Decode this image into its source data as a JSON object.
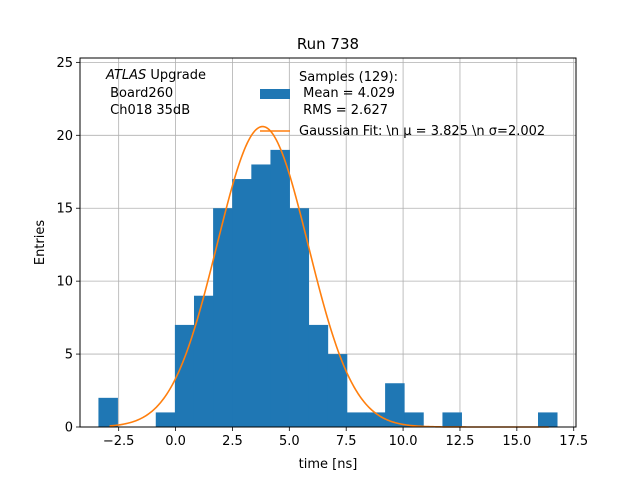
{
  "chart_data": {
    "type": "bar",
    "title": "Run 738",
    "xlabel": "time [ns]",
    "ylabel": "Entries",
    "xlim": [
      -4.2,
      17.6
    ],
    "ylim": [
      0,
      25.3
    ],
    "x_ticks": [
      -2.5,
      0.0,
      2.5,
      5.0,
      7.5,
      10.0,
      12.5,
      15.0,
      17.5
    ],
    "x_tick_labels": [
      "−2.5",
      "0.0",
      "2.5",
      "5.0",
      "7.5",
      "10.0",
      "12.5",
      "15.0",
      "17.5"
    ],
    "y_ticks": [
      0,
      5,
      10,
      15,
      20,
      25
    ],
    "y_tick_labels": [
      "0",
      "5",
      "10",
      "15",
      "20",
      "25"
    ],
    "grid": true,
    "bar_color": "#1f77b4",
    "fit_color": "#ff7f0e",
    "bins": [
      {
        "x0": -3.39,
        "x1": -2.55,
        "count": 2
      },
      {
        "x0": -0.87,
        "x1": -0.03,
        "count": 1
      },
      {
        "x0": -0.03,
        "x1": 0.81,
        "count": 7
      },
      {
        "x0": 0.81,
        "x1": 1.65,
        "count": 9
      },
      {
        "x0": 1.65,
        "x1": 2.49,
        "count": 15
      },
      {
        "x0": 2.49,
        "x1": 3.33,
        "count": 17
      },
      {
        "x0": 3.33,
        "x1": 4.17,
        "count": 18
      },
      {
        "x0": 4.17,
        "x1": 5.01,
        "count": 19
      },
      {
        "x0": 5.01,
        "x1": 5.85,
        "count": 15
      },
      {
        "x0": 5.85,
        "x1": 6.69,
        "count": 7
      },
      {
        "x0": 6.69,
        "x1": 7.53,
        "count": 5
      },
      {
        "x0": 7.53,
        "x1": 8.37,
        "count": 1
      },
      {
        "x0": 8.37,
        "x1": 9.21,
        "count": 1
      },
      {
        "x0": 9.21,
        "x1": 10.05,
        "count": 3
      },
      {
        "x0": 10.05,
        "x1": 10.89,
        "count": 1
      },
      {
        "x0": 11.73,
        "x1": 12.57,
        "count": 1
      },
      {
        "x0": 15.93,
        "x1": 16.77,
        "count": 1
      }
    ],
    "fit": {
      "mu": 3.825,
      "sigma": 2.002,
      "amplitude": 20.6,
      "x_range": [
        -2.9,
        16.4
      ]
    },
    "annotation_lines": [
      "ATLAS Upgrade",
      " Board260",
      " Ch018 35dB"
    ],
    "legend": {
      "position": "top-right",
      "samples_lines": [
        "Samples (129):",
        " Mean = 4.029",
        " RMS = 2.627"
      ],
      "fit_label": "Gaussian Fit: \\n μ = 3.825 \\n σ=2.002"
    }
  }
}
